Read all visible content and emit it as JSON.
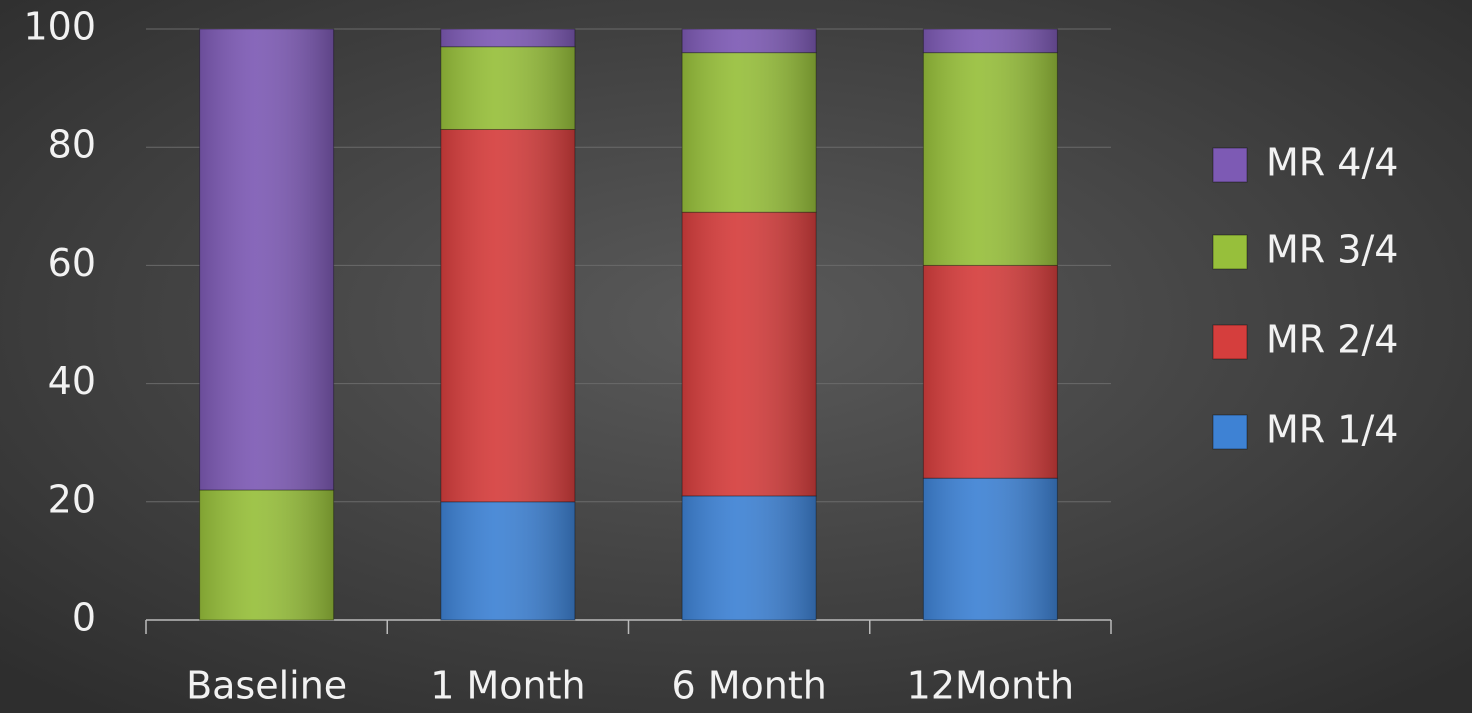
{
  "chart_data": {
    "type": "stacked_bar",
    "categories": [
      "Baseline",
      "1 Month",
      "6 Month",
      "12Month"
    ],
    "series": [
      {
        "name": "MR 1/4",
        "color": "#3e82d4",
        "values": [
          0,
          20,
          21,
          24
        ]
      },
      {
        "name": "MR 2/4",
        "color": "#d53e3d",
        "values": [
          0,
          63,
          48,
          36
        ]
      },
      {
        "name": "MR 3/4",
        "color": "#97bf3b",
        "values": [
          22,
          14,
          27,
          36
        ]
      },
      {
        "name": "MR 4/4",
        "color": "#7d5ab4",
        "values": [
          78,
          3,
          4,
          4
        ]
      }
    ],
    "ylim": [
      0,
      100
    ],
    "yticks": [
      0,
      20,
      40,
      60,
      80,
      100
    ],
    "grid": true,
    "legend": "right"
  }
}
